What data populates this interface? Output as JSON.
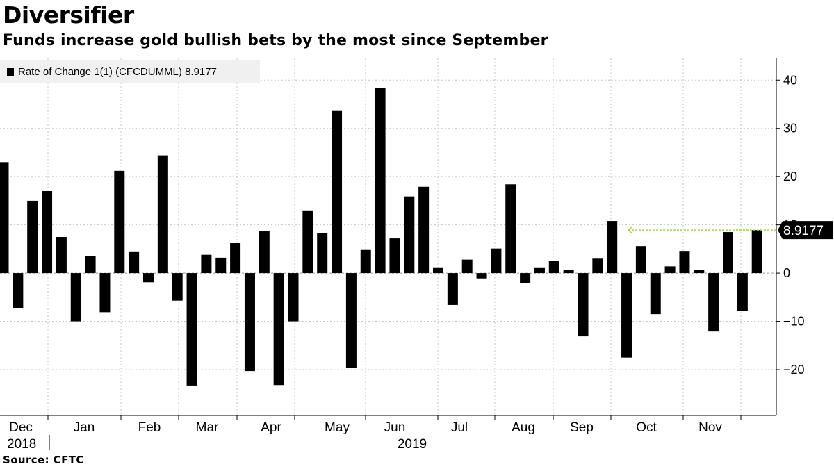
{
  "title": "Diversifier",
  "subtitle": "Funds increase gold bullish bets by the most since September",
  "source": "Source: CFTC",
  "colors": {
    "bar": "#000000",
    "grid": "#c8c8c8",
    "marker_line": "#99dd33",
    "last_label_bg": "#000000",
    "last_label_fg": "#ffffff",
    "legend_bg": "#f0f0f0"
  },
  "chart_data": {
    "type": "bar",
    "legend_position": "top-left",
    "grid": true,
    "ylim": [
      -29.5,
      44.5
    ],
    "yticks": [
      40,
      30,
      20,
      10,
      0,
      -10,
      -20
    ],
    "ytick_labels": [
      "40",
      "30",
      "20",
      "10",
      "0",
      "−10",
      "−20"
    ],
    "x_month_labels": [
      "Dec",
      "Jan",
      "Feb",
      "Mar",
      "Apr",
      "May",
      "Jun",
      "Jul",
      "Aug",
      "Sep",
      "Oct",
      "Nov"
    ],
    "x_year_labels": [
      "2018",
      "2019"
    ],
    "series": [
      {
        "name": "Rate of Change 1(1) (CFCDUMML)",
        "last_value": "8.9177",
        "values": [
          23.0,
          -7.3,
          15.0,
          17.0,
          7.5,
          -10.0,
          3.6,
          -8.1,
          21.2,
          4.5,
          -1.9,
          24.4,
          -5.7,
          -23.3,
          3.8,
          3.2,
          6.2,
          -20.3,
          8.8,
          -23.2,
          -10.0,
          13.0,
          8.3,
          33.6,
          -19.6,
          4.8,
          38.4,
          7.2,
          15.9,
          17.9,
          1.2,
          -6.6,
          2.8,
          -1.1,
          5.1,
          18.4,
          -2.0,
          1.2,
          2.6,
          0.6,
          -13.1,
          3.0,
          10.8,
          -17.5,
          5.6,
          -8.5,
          1.4,
          4.6,
          0.6,
          -12.1,
          8.5,
          -7.9,
          8.9177
        ]
      }
    ]
  }
}
